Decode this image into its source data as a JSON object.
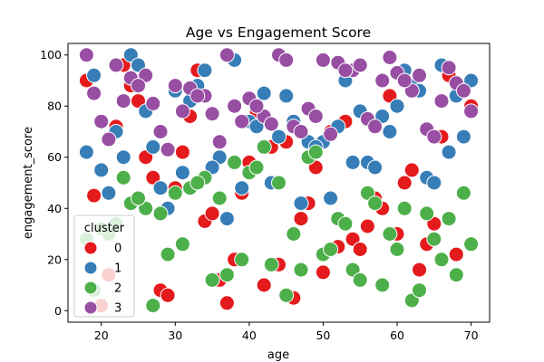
{
  "chart_data": {
    "type": "scatter",
    "title": "Age vs Engagement Score",
    "xlabel": "age",
    "ylabel": "engagement_score",
    "xlim": [
      15.5,
      72.5
    ],
    "ylim": [
      -4.5,
      104.5
    ],
    "xticks": [
      20,
      30,
      40,
      50,
      60,
      70
    ],
    "yticks": [
      0,
      20,
      40,
      60,
      80,
      100
    ],
    "grid": false,
    "legend": {
      "title": "cluster",
      "placement": "lower-left"
    },
    "colors": {
      "0": "#e41a1c",
      "1": "#377eb8",
      "2": "#4daf4a",
      "3": "#984ea3"
    },
    "series": [
      {
        "name": "0",
        "color": "#e41a1c",
        "x": [
          18,
          22,
          26,
          30,
          34,
          38,
          42,
          46,
          50,
          54,
          58,
          62,
          66,
          70,
          20,
          28,
          36,
          44,
          52,
          60,
          68,
          19,
          27,
          35,
          43,
          51,
          59,
          67,
          24,
          32,
          40,
          48,
          56,
          64,
          21,
          29,
          37,
          45,
          53,
          61,
          69,
          23,
          31,
          39,
          47,
          55,
          63,
          25,
          33,
          41,
          49,
          57,
          65
        ],
        "y": [
          90,
          72,
          60,
          48,
          35,
          20,
          10,
          5,
          15,
          28,
          40,
          55,
          68,
          80,
          2,
          8,
          12,
          18,
          25,
          30,
          22,
          45,
          52,
          38,
          64,
          70,
          84,
          92,
          88,
          76,
          58,
          42,
          33,
          26,
          14,
          6,
          3,
          66,
          74,
          50,
          86,
          96,
          62,
          46,
          36,
          24,
          16,
          82,
          94,
          78,
          56,
          44,
          34
        ]
      },
      {
        "name": "1",
        "color": "#377eb8",
        "x": [
          18,
          22,
          26,
          30,
          34,
          38,
          42,
          46,
          50,
          54,
          58,
          62,
          66,
          70,
          20,
          28,
          36,
          44,
          52,
          60,
          68,
          19,
          27,
          35,
          43,
          51,
          59,
          67,
          24,
          32,
          40,
          48,
          56,
          64,
          21,
          29,
          37,
          45,
          53,
          61,
          69,
          23,
          31,
          39,
          47,
          55,
          63,
          25,
          33,
          41,
          49,
          57,
          65
        ],
        "y": [
          62,
          70,
          78,
          86,
          94,
          98,
          85,
          74,
          66,
          58,
          76,
          88,
          96,
          90,
          55,
          48,
          60,
          68,
          72,
          80,
          84,
          92,
          64,
          56,
          50,
          44,
          70,
          62,
          100,
          82,
          74,
          66,
          58,
          52,
          46,
          40,
          36,
          84,
          90,
          94,
          68,
          60,
          54,
          48,
          42,
          78,
          86,
          96,
          88,
          72,
          64,
          56,
          50
        ]
      },
      {
        "name": "2",
        "color": "#4daf4a",
        "x": [
          18,
          22,
          26,
          30,
          34,
          38,
          42,
          46,
          50,
          54,
          58,
          62,
          66,
          70,
          20,
          28,
          36,
          44,
          52,
          60,
          68,
          19,
          27,
          35,
          43,
          51,
          59,
          67,
          24,
          32,
          40,
          48,
          56,
          64,
          21,
          29,
          37,
          45,
          53,
          61,
          69,
          23,
          31,
          39,
          47,
          55,
          63,
          25,
          33,
          41,
          49,
          57,
          65
        ],
        "y": [
          28,
          34,
          40,
          46,
          52,
          58,
          64,
          30,
          22,
          16,
          10,
          4,
          20,
          26,
          32,
          38,
          44,
          50,
          36,
          24,
          14,
          8,
          2,
          12,
          18,
          24,
          30,
          36,
          42,
          48,
          54,
          60,
          46,
          38,
          30,
          22,
          14,
          6,
          34,
          40,
          46,
          52,
          26,
          20,
          16,
          12,
          8,
          44,
          50,
          56,
          62,
          42,
          28
        ]
      },
      {
        "name": "3",
        "color": "#984ea3",
        "x": [
          18,
          22,
          26,
          30,
          34,
          38,
          42,
          46,
          50,
          54,
          58,
          62,
          66,
          70,
          20,
          28,
          36,
          44,
          52,
          60,
          68,
          19,
          27,
          35,
          43,
          51,
          59,
          67,
          24,
          32,
          40,
          48,
          56,
          64,
          21,
          29,
          37,
          45,
          53,
          61,
          69,
          23,
          31,
          39,
          47,
          55,
          63,
          25,
          33,
          41,
          49,
          57,
          65
        ],
        "y": [
          100,
          96,
          92,
          88,
          84,
          80,
          76,
          72,
          98,
          94,
          90,
          86,
          82,
          78,
          74,
          70,
          66,
          100,
          97,
          93,
          89,
          85,
          81,
          77,
          73,
          69,
          99,
          95,
          91,
          87,
          83,
          79,
          75,
          71,
          67,
          63,
          100,
          98,
          94,
          90,
          86,
          82,
          78,
          74,
          70,
          96,
          92,
          88,
          84,
          80,
          76,
          72,
          68
        ]
      }
    ]
  }
}
